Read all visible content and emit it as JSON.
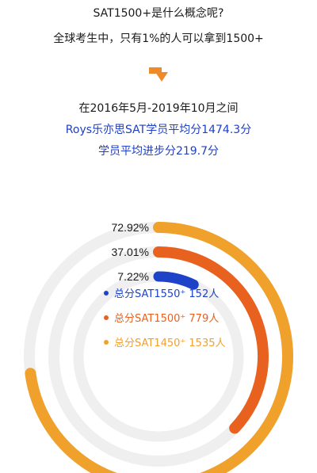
{
  "header": {
    "title": "SAT1500+是什么概念呢?",
    "subtitle": "全球考生中，只有1%的人可以拿到1500+",
    "period": "在2016年5月-2019年10月之间",
    "avg_score": "Roys乐亦思SAT学员平均分1474.3分",
    "avg_improvement": "学员平均进步分219.7分"
  },
  "colors": {
    "track": "#efefef",
    "blue": "#1e43c8",
    "red": "#e8611f",
    "orange": "#f0a12c",
    "arrow": "#ee8a2a"
  },
  "chart_data": {
    "type": "radial-bar",
    "series": [
      {
        "name": "总分SAT1450⁺ 1535人",
        "value": 72.92,
        "label": "72.92%",
        "color": "#f0a12c"
      },
      {
        "name": "总分SAT1500⁺ 779人",
        "value": 37.01,
        "label": "37.01%",
        "color": "#e8611f"
      },
      {
        "name": "总分SAT1550⁺ 152人",
        "value": 7.22,
        "label": "7.22%",
        "color": "#1e43c8"
      }
    ],
    "legend": [
      {
        "text": "总分SAT1550⁺ 152人",
        "color": "#1e43c8"
      },
      {
        "text": "总分SAT1500⁺ 779人",
        "color": "#e8611f"
      },
      {
        "text": "总分SAT1450⁺ 1535人",
        "color": "#f0a12c"
      }
    ]
  }
}
